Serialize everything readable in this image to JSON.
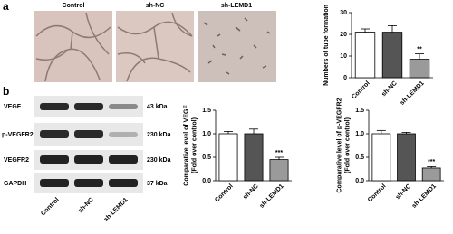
{
  "panels": {
    "a": "a",
    "b": "b"
  },
  "images": {
    "labels": [
      "Control",
      "sh-NC",
      "sh-LEMD1"
    ]
  },
  "blots": {
    "proteins": [
      "VEGF",
      "p-VEGFR2",
      "VEGFR2",
      "GAPDH"
    ],
    "sizes": [
      "43 kDa",
      "230 kDa",
      "230 kDa",
      "37 kDa"
    ],
    "lanes": [
      "Control",
      "sh-NC",
      "sh-LEMD1"
    ]
  },
  "chart_data": [
    {
      "type": "bar",
      "ylabel": [
        "Numbers of tube formation"
      ],
      "categories": [
        "Control",
        "sh-NC",
        "sh-LEMD1"
      ],
      "values": [
        21,
        21,
        8.5
      ],
      "errors": [
        1.5,
        3,
        2.5
      ],
      "significance": [
        null,
        null,
        "**"
      ],
      "colors": [
        "#ffffff",
        "#555555",
        "#9a9a9a"
      ],
      "ylim": [
        0,
        30
      ],
      "yticks": [
        0,
        10,
        20,
        30
      ]
    },
    {
      "type": "bar",
      "ylabel": [
        "Comparative level of VEGF",
        "(Fold over control)"
      ],
      "categories": [
        "Control",
        "sh-NC",
        "sh-LEMD1"
      ],
      "values": [
        1.0,
        1.0,
        0.45
      ],
      "errors": [
        0.05,
        0.1,
        0.05
      ],
      "significance": [
        null,
        null,
        "***"
      ],
      "colors": [
        "#ffffff",
        "#555555",
        "#9a9a9a"
      ],
      "ylim": [
        0,
        1.5
      ],
      "yticks": [
        {
          "value": 0,
          "label": "0.0"
        },
        {
          "value": 0.5,
          "label": "0.5"
        },
        {
          "value": 1,
          "label": "1.0"
        },
        {
          "value": 1.5,
          "label": "1.5"
        }
      ]
    },
    {
      "type": "bar",
      "ylabel": [
        "Comparative level of p-VEGFR2",
        "(Fold over control)"
      ],
      "categories": [
        "Control",
        "sh-NC",
        "sh-LEMD1"
      ],
      "values": [
        1.0,
        1.0,
        0.27
      ],
      "errors": [
        0.07,
        0.03,
        0.03
      ],
      "significance": [
        null,
        null,
        "***"
      ],
      "colors": [
        "#ffffff",
        "#555555",
        "#9a9a9a"
      ],
      "ylim": [
        0,
        1.5
      ],
      "yticks": [
        {
          "value": 0,
          "label": "0.0"
        },
        {
          "value": 0.5,
          "label": "0.5"
        },
        {
          "value": 1,
          "label": "1.0"
        },
        {
          "value": 1.5,
          "label": "1.5"
        }
      ]
    }
  ]
}
